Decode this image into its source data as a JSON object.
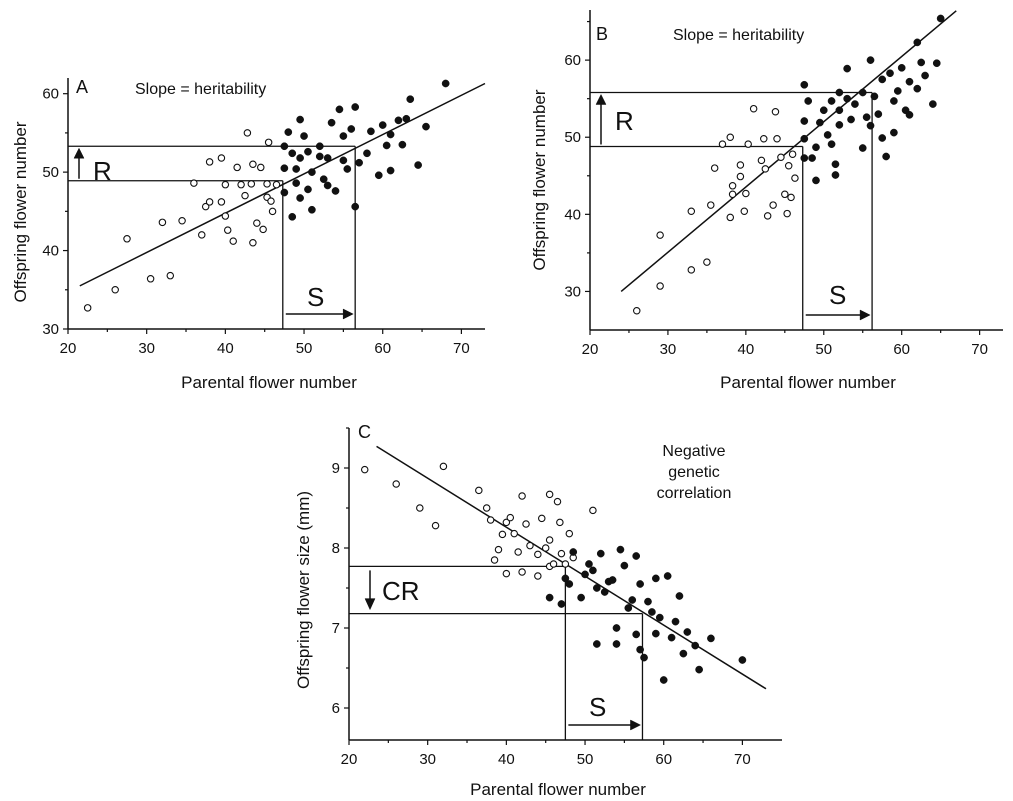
{
  "chart_data": [
    {
      "type": "scatter",
      "panel": "A",
      "annotation": "Slope = heritability",
      "xlabel": "Parental flower number",
      "ylabel": "Offspring flower number",
      "xlim": [
        20,
        73
      ],
      "ylim": [
        30,
        62
      ],
      "xticks": [
        "20",
        "30",
        "40",
        "50",
        "60",
        "70"
      ],
      "yticks": [
        "30",
        "40",
        "50",
        "60"
      ],
      "regression": {
        "x1": 21.5,
        "y1": 35.5,
        "x2": 73,
        "y2": 61.3
      },
      "threshold_x": 47.3,
      "selected_mean_x": 56.5,
      "mean_y": 48.9,
      "selected_y": 53.3,
      "R_label": "R",
      "S_label": "S",
      "open_points": [
        [
          22.5,
          32.7
        ],
        [
          26,
          35
        ],
        [
          27.5,
          41.5
        ],
        [
          30.5,
          36.4
        ],
        [
          32,
          43.6
        ],
        [
          33,
          36.8
        ],
        [
          34.5,
          43.8
        ],
        [
          36,
          48.6
        ],
        [
          37,
          42
        ],
        [
          37.5,
          45.6
        ],
        [
          38,
          51.3
        ],
        [
          38,
          46.2
        ],
        [
          39.5,
          51.8
        ],
        [
          39.5,
          46.2
        ],
        [
          40,
          48.4
        ],
        [
          40,
          44.4
        ],
        [
          40.3,
          42.6
        ],
        [
          41,
          41.2
        ],
        [
          41.5,
          50.6
        ],
        [
          42,
          48.4
        ],
        [
          42.5,
          47
        ],
        [
          42.8,
          55
        ],
        [
          43.3,
          48.5
        ],
        [
          43.5,
          51
        ],
        [
          43.5,
          41
        ],
        [
          44,
          43.5
        ],
        [
          44.5,
          50.6
        ],
        [
          44.8,
          42.7
        ],
        [
          45.3,
          48.5
        ],
        [
          45.3,
          46.8
        ],
        [
          45.5,
          53.8
        ],
        [
          45.8,
          46.3
        ],
        [
          46,
          45
        ],
        [
          46.5,
          48.4
        ]
      ],
      "filled_points": [
        [
          47.5,
          53.3
        ],
        [
          47.5,
          50.5
        ],
        [
          47.5,
          47.4
        ],
        [
          48,
          55.1
        ],
        [
          48.5,
          52.4
        ],
        [
          48.5,
          44.3
        ],
        [
          49,
          50.4
        ],
        [
          49,
          48.6
        ],
        [
          49.5,
          56.7
        ],
        [
          49.5,
          51.8
        ],
        [
          49.5,
          46.7
        ],
        [
          50,
          54.6
        ],
        [
          50.5,
          52.6
        ],
        [
          50.5,
          47.8
        ],
        [
          51,
          45.2
        ],
        [
          51,
          50
        ],
        [
          52,
          53.3
        ],
        [
          52,
          52
        ],
        [
          52.5,
          49.1
        ],
        [
          53,
          48.3
        ],
        [
          53,
          51.8
        ],
        [
          53.5,
          56.3
        ],
        [
          54,
          47.6
        ],
        [
          54.5,
          58
        ],
        [
          55,
          54.6
        ],
        [
          55,
          51.5
        ],
        [
          55.5,
          50.4
        ],
        [
          56,
          55.5
        ],
        [
          56.5,
          58.3
        ],
        [
          56.5,
          45.6
        ],
        [
          57,
          51.2
        ],
        [
          58,
          52.4
        ],
        [
          58.5,
          55.2
        ],
        [
          59.5,
          49.6
        ],
        [
          60,
          56
        ],
        [
          60.5,
          53.4
        ],
        [
          61,
          50.2
        ],
        [
          61,
          54.8
        ],
        [
          62,
          56.6
        ],
        [
          62.5,
          53.5
        ],
        [
          63,
          56.8
        ],
        [
          63.5,
          59.3
        ],
        [
          64.5,
          50.9
        ],
        [
          65.5,
          55.8
        ],
        [
          68,
          61.3
        ]
      ]
    },
    {
      "type": "scatter",
      "panel": "B",
      "annotation": "Slope = heritability",
      "xlabel": "Parental flower number",
      "ylabel": "Offspring flower number",
      "xlim": [
        20,
        73
      ],
      "ylim": [
        25,
        66.5
      ],
      "xticks": [
        "20",
        "30",
        "40",
        "50",
        "60",
        "70"
      ],
      "yticks": [
        "30",
        "40",
        "50",
        "60"
      ],
      "regression": {
        "x1": 24,
        "y1": 30,
        "x2": 67,
        "y2": 66.4
      },
      "threshold_x": 47.3,
      "selected_mean_x": 56.2,
      "mean_y": 48.8,
      "selected_y": 55.8,
      "R_label": "R",
      "S_label": "S",
      "open_points": [
        [
          26,
          27.5
        ],
        [
          29,
          30.7
        ],
        [
          29,
          37.3
        ],
        [
          33,
          32.8
        ],
        [
          33,
          40.4
        ],
        [
          35,
          33.8
        ],
        [
          35.5,
          41.2
        ],
        [
          36,
          46
        ],
        [
          37,
          49.1
        ],
        [
          38,
          50
        ],
        [
          38,
          39.6
        ],
        [
          38.3,
          43.7
        ],
        [
          38.3,
          42.6
        ],
        [
          39.3,
          44.9
        ],
        [
          39.3,
          46.4
        ],
        [
          39.8,
          40.4
        ],
        [
          40,
          42.7
        ],
        [
          40.3,
          49.1
        ],
        [
          41,
          53.7
        ],
        [
          42,
          47
        ],
        [
          42.3,
          49.8
        ],
        [
          42.5,
          45.9
        ],
        [
          42.8,
          39.8
        ],
        [
          43.5,
          41.2
        ],
        [
          43.8,
          53.3
        ],
        [
          44,
          49.8
        ],
        [
          44.5,
          47.4
        ],
        [
          45,
          42.6
        ],
        [
          45.3,
          40.1
        ],
        [
          45.5,
          46.3
        ],
        [
          45.8,
          42.2
        ],
        [
          46,
          47.8
        ],
        [
          46.3,
          44.7
        ]
      ],
      "filled_points": [
        [
          47.5,
          56.8
        ],
        [
          47.5,
          52.1
        ],
        [
          47.5,
          49.8
        ],
        [
          47.5,
          47.3
        ],
        [
          48,
          54.7
        ],
        [
          48.5,
          47.3
        ],
        [
          49,
          48.7
        ],
        [
          49,
          44.4
        ],
        [
          49.5,
          51.9
        ],
        [
          50,
          53.5
        ],
        [
          50.5,
          50.3
        ],
        [
          51,
          54.7
        ],
        [
          51,
          49.1
        ],
        [
          51.5,
          46.5
        ],
        [
          51.5,
          45.1
        ],
        [
          52,
          55.8
        ],
        [
          52,
          53.5
        ],
        [
          52,
          51.6
        ],
        [
          53,
          58.9
        ],
        [
          53,
          55
        ],
        [
          53.5,
          52.3
        ],
        [
          54,
          54.3
        ],
        [
          55,
          55.8
        ],
        [
          55,
          48.6
        ],
        [
          55.5,
          52.6
        ],
        [
          56,
          60
        ],
        [
          56,
          51.5
        ],
        [
          56.5,
          55.3
        ],
        [
          57,
          53
        ],
        [
          57.5,
          57.5
        ],
        [
          57.5,
          49.9
        ],
        [
          58,
          47.5
        ],
        [
          58.5,
          58.3
        ],
        [
          59,
          54.7
        ],
        [
          59,
          50.6
        ],
        [
          59.5,
          56
        ],
        [
          60,
          59
        ],
        [
          60.5,
          53.5
        ],
        [
          61,
          57.2
        ],
        [
          61,
          52.9
        ],
        [
          62,
          62.3
        ],
        [
          62,
          56.3
        ],
        [
          62.5,
          59.7
        ],
        [
          63,
          58
        ],
        [
          64,
          54.3
        ],
        [
          64.5,
          59.6
        ],
        [
          65,
          65.4
        ]
      ]
    },
    {
      "type": "scatter",
      "panel": "C",
      "annotation_lines": [
        "Negative",
        "genetic",
        "correlation"
      ],
      "xlabel": "Parental flower number",
      "ylabel": "Offspring flower size (mm)",
      "xlim": [
        20,
        73
      ],
      "ylim": [
        5.6,
        9.5
      ],
      "xticks": [
        "20",
        "30",
        "40",
        "50",
        "60",
        "70"
      ],
      "yticks": [
        "6",
        "7",
        "8",
        "9"
      ],
      "regression": {
        "x1": 23.5,
        "y1": 9.27,
        "x2": 73,
        "y2": 6.24
      },
      "threshold_x": 47.5,
      "selected_mean_x": 57.3,
      "mean_y": 7.77,
      "selected_y": 7.18,
      "CR_label": "CR",
      "S_label": "S",
      "open_points": [
        [
          22,
          8.98
        ],
        [
          26,
          8.8
        ],
        [
          29,
          8.5
        ],
        [
          31,
          8.28
        ],
        [
          32,
          9.02
        ],
        [
          36.5,
          8.72
        ],
        [
          37.5,
          8.5
        ],
        [
          38,
          8.35
        ],
        [
          38.5,
          7.85
        ],
        [
          39,
          7.98
        ],
        [
          39.5,
          8.17
        ],
        [
          40,
          8.32
        ],
        [
          40,
          7.68
        ],
        [
          40.5,
          8.38
        ],
        [
          41,
          8.18
        ],
        [
          41.5,
          7.95
        ],
        [
          42,
          8.65
        ],
        [
          42,
          7.7
        ],
        [
          42.5,
          8.3
        ],
        [
          43,
          8.03
        ],
        [
          44,
          7.92
        ],
        [
          44.5,
          8.37
        ],
        [
          45,
          8.0
        ],
        [
          45.5,
          8.67
        ],
        [
          45.5,
          8.1
        ],
        [
          45.5,
          7.77
        ],
        [
          46,
          7.8
        ],
        [
          46.5,
          8.58
        ],
        [
          46.8,
          8.32
        ],
        [
          47,
          7.93
        ],
        [
          47.5,
          7.8
        ],
        [
          48,
          8.18
        ],
        [
          48.5,
          7.88
        ],
        [
          51,
          8.47
        ],
        [
          44,
          7.65
        ]
      ],
      "filled_points": [
        [
          45.5,
          7.38
        ],
        [
          47,
          7.3
        ],
        [
          47.5,
          7.62
        ],
        [
          48,
          7.55
        ],
        [
          48.5,
          7.95
        ],
        [
          49.5,
          7.38
        ],
        [
          50,
          7.67
        ],
        [
          50.5,
          7.8
        ],
        [
          51,
          7.72
        ],
        [
          51.5,
          7.5
        ],
        [
          51.5,
          6.8
        ],
        [
          52,
          7.93
        ],
        [
          52.5,
          7.45
        ],
        [
          53,
          7.58
        ],
        [
          53.5,
          7.6
        ],
        [
          54,
          7.0
        ],
        [
          54,
          6.8
        ],
        [
          54.5,
          7.98
        ],
        [
          55,
          7.78
        ],
        [
          55.5,
          7.25
        ],
        [
          56,
          7.35
        ],
        [
          56.5,
          7.9
        ],
        [
          56.5,
          6.92
        ],
        [
          57,
          7.55
        ],
        [
          57,
          6.73
        ],
        [
          57.5,
          6.63
        ],
        [
          58,
          7.33
        ],
        [
          58.5,
          7.2
        ],
        [
          59,
          7.62
        ],
        [
          59,
          6.93
        ],
        [
          59.5,
          7.13
        ],
        [
          60,
          6.35
        ],
        [
          60.5,
          7.65
        ],
        [
          61,
          6.88
        ],
        [
          61.5,
          7.08
        ],
        [
          62,
          7.4
        ],
        [
          62.5,
          6.68
        ],
        [
          63,
          6.95
        ],
        [
          64,
          6.78
        ],
        [
          64.5,
          6.48
        ],
        [
          66,
          6.87
        ],
        [
          70,
          6.6
        ]
      ]
    }
  ]
}
